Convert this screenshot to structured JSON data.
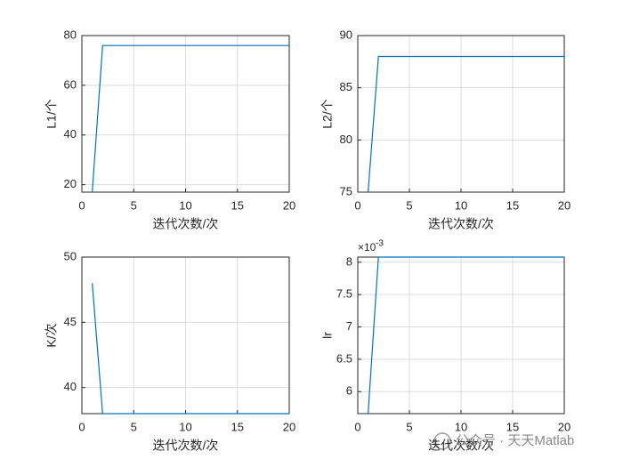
{
  "chart_data": [
    {
      "type": "line",
      "ylabel": "L1/个",
      "xlabel": "迭代次数/次",
      "color": "#0072bd",
      "grid": true,
      "x": [
        1,
        2,
        3,
        4,
        5,
        6,
        7,
        8,
        9,
        10,
        11,
        12,
        13,
        14,
        15,
        16,
        17,
        18,
        19,
        20
      ],
      "values": [
        17,
        76,
        76,
        76,
        76,
        76,
        76,
        76,
        76,
        76,
        76,
        76,
        76,
        76,
        76,
        76,
        76,
        76,
        76,
        76
      ],
      "xlim": [
        0,
        20
      ],
      "xticks": [
        0,
        5,
        10,
        15,
        20
      ],
      "ylim": [
        17,
        80
      ],
      "yticks": [
        20,
        40,
        60,
        80
      ]
    },
    {
      "type": "line",
      "ylabel": "L2/个",
      "xlabel": "迭代次数/次",
      "color": "#0072bd",
      "grid": true,
      "x": [
        1,
        2,
        3,
        4,
        5,
        6,
        7,
        8,
        9,
        10,
        11,
        12,
        13,
        14,
        15,
        16,
        17,
        18,
        19,
        20
      ],
      "values": [
        75,
        88,
        88,
        88,
        88,
        88,
        88,
        88,
        88,
        88,
        88,
        88,
        88,
        88,
        88,
        88,
        88,
        88,
        88,
        88
      ],
      "xlim": [
        0,
        20
      ],
      "xticks": [
        0,
        5,
        10,
        15,
        20
      ],
      "ylim": [
        75,
        90
      ],
      "yticks": [
        75,
        80,
        85,
        90
      ]
    },
    {
      "type": "line",
      "ylabel": "K/次",
      "xlabel": "迭代次数/次",
      "color": "#0072bd",
      "grid": true,
      "x": [
        1,
        2,
        3,
        4,
        5,
        6,
        7,
        8,
        9,
        10,
        11,
        12,
        13,
        14,
        15,
        16,
        17,
        18,
        19,
        20
      ],
      "values": [
        48,
        38,
        38,
        38,
        38,
        38,
        38,
        38,
        38,
        38,
        38,
        38,
        38,
        38,
        38,
        38,
        38,
        38,
        38,
        38
      ],
      "xlim": [
        0,
        20
      ],
      "xticks": [
        0,
        5,
        10,
        15,
        20
      ],
      "ylim": [
        38,
        50
      ],
      "yticks": [
        40,
        45,
        50
      ]
    },
    {
      "type": "line",
      "ylabel": "lr",
      "xlabel": "迭代次数/次",
      "color": "#0072bd",
      "grid": true,
      "y_exponent_base": "×10",
      "y_exponent_power": "-3",
      "x": [
        1,
        2,
        3,
        4,
        5,
        6,
        7,
        8,
        9,
        10,
        11,
        12,
        13,
        14,
        15,
        16,
        17,
        18,
        19,
        20
      ],
      "values": [
        5.66,
        8.08,
        8.08,
        8.08,
        8.08,
        8.08,
        8.08,
        8.08,
        8.08,
        8.08,
        8.08,
        8.08,
        8.08,
        8.08,
        8.08,
        8.08,
        8.08,
        8.08,
        8.08,
        8.08
      ],
      "xlim": [
        0,
        20
      ],
      "xticks": [
        0,
        5,
        10,
        15,
        20
      ],
      "ylim": [
        5.66,
        8.08
      ],
      "yticks": [
        6,
        6.5,
        7,
        7.5,
        8
      ]
    }
  ],
  "watermark": "公众号 · 天天Matlab"
}
